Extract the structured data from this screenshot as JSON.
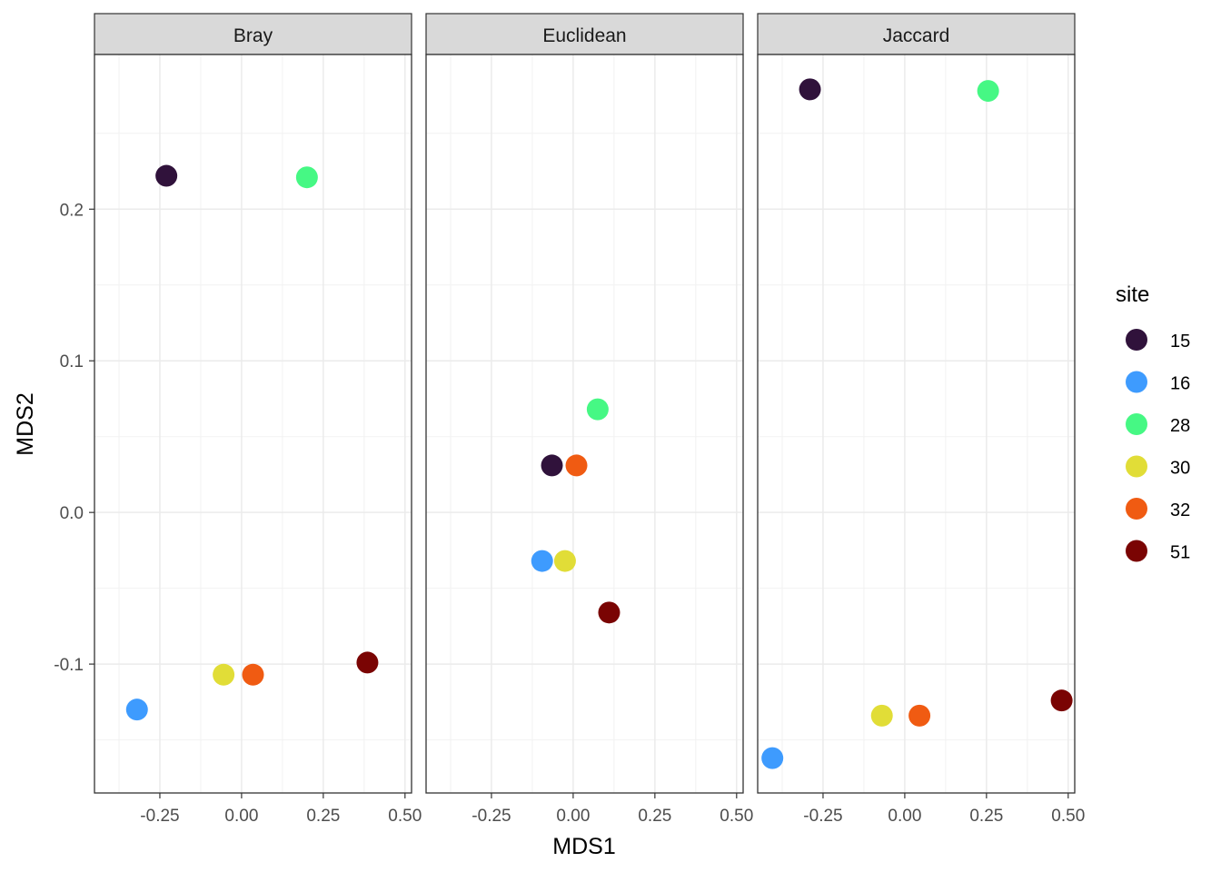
{
  "chart_data": {
    "type": "scatter",
    "xlabel": "MDS1",
    "ylabel": "MDS2",
    "xlim": [
      -0.45,
      0.52
    ],
    "ylim": [
      -0.185,
      0.302
    ],
    "x_ticks": [
      -0.25,
      0.0,
      0.25,
      0.5
    ],
    "x_tick_labels": [
      "-0.25",
      "0.00",
      "0.25",
      "0.50"
    ],
    "y_ticks": [
      -0.1,
      0.0,
      0.1,
      0.2
    ],
    "y_tick_labels": [
      "-0.1",
      "0.0",
      "0.1",
      "0.2"
    ],
    "grid": true,
    "legend": {
      "title": "site",
      "placement": "right",
      "entries": [
        {
          "label": "15",
          "color": "#30123b"
        },
        {
          "label": "16",
          "color": "#3e9bfe"
        },
        {
          "label": "28",
          "color": "#46f884"
        },
        {
          "label": "30",
          "color": "#e1dd37"
        },
        {
          "label": "32",
          "color": "#f05b12"
        },
        {
          "label": "51",
          "color": "#7a0403"
        }
      ]
    },
    "panels": [
      {
        "title": "Bray",
        "points": [
          {
            "site": "15",
            "x": -0.23,
            "y": 0.222
          },
          {
            "site": "16",
            "x": -0.32,
            "y": -0.13
          },
          {
            "site": "28",
            "x": 0.2,
            "y": 0.221
          },
          {
            "site": "30",
            "x": -0.055,
            "y": -0.107
          },
          {
            "site": "32",
            "x": 0.035,
            "y": -0.107
          },
          {
            "site": "51",
            "x": 0.385,
            "y": -0.099
          }
        ]
      },
      {
        "title": "Euclidean",
        "points": [
          {
            "site": "15",
            "x": -0.065,
            "y": 0.031
          },
          {
            "site": "16",
            "x": -0.095,
            "y": -0.032
          },
          {
            "site": "28",
            "x": 0.075,
            "y": 0.068
          },
          {
            "site": "30",
            "x": -0.025,
            "y": -0.032
          },
          {
            "site": "32",
            "x": 0.01,
            "y": 0.031
          },
          {
            "site": "51",
            "x": 0.11,
            "y": -0.066
          }
        ]
      },
      {
        "title": "Jaccard",
        "points": [
          {
            "site": "15",
            "x": -0.29,
            "y": 0.279
          },
          {
            "site": "16",
            "x": -0.405,
            "y": -0.162
          },
          {
            "site": "28",
            "x": 0.255,
            "y": 0.278
          },
          {
            "site": "30",
            "x": -0.07,
            "y": -0.134
          },
          {
            "site": "32",
            "x": 0.045,
            "y": -0.134
          },
          {
            "site": "51",
            "x": 0.48,
            "y": -0.124
          }
        ]
      }
    ]
  }
}
